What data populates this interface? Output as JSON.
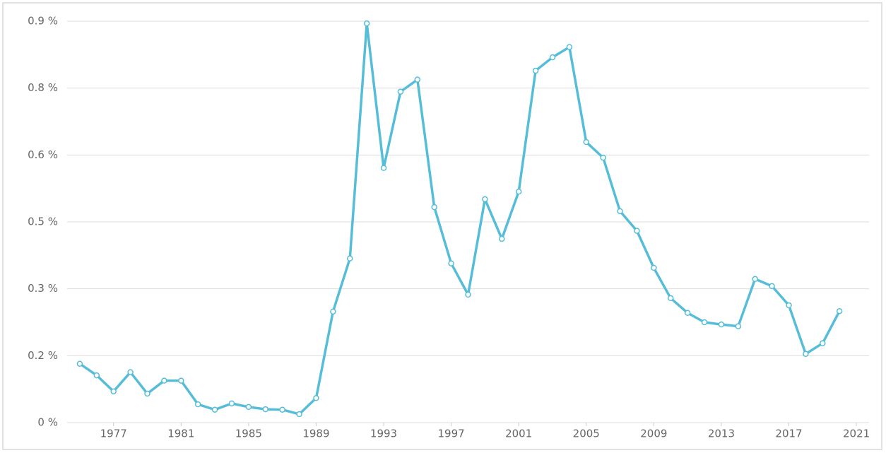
{
  "chart_data": {
    "type": "line",
    "x": [
      1975,
      1976,
      1977,
      1978,
      1979,
      1980,
      1981,
      1982,
      1983,
      1984,
      1985,
      1986,
      1987,
      1988,
      1989,
      1990,
      1991,
      1992,
      1993,
      1994,
      1995,
      1996,
      1997,
      1998,
      1999,
      2000,
      2001,
      2002,
      2003,
      2004,
      2005,
      2006,
      2007,
      2008,
      2009,
      2010,
      2011,
      2012,
      2013,
      2014,
      2015,
      2016,
      2017,
      2018,
      2019,
      2020
    ],
    "series": [
      {
        "color": "#56bdd9",
        "values": [
          0.132,
          0.106,
          0.07,
          0.113,
          0.065,
          0.094,
          0.094,
          0.041,
          0.029,
          0.043,
          0.035,
          0.03,
          0.029,
          0.019,
          0.055,
          0.249,
          0.368,
          0.895,
          0.571,
          0.742,
          0.769,
          0.483,
          0.357,
          0.287,
          0.501,
          0.412,
          0.518,
          0.789,
          0.819,
          0.842,
          0.629,
          0.594,
          0.474,
          0.43,
          0.347,
          0.279,
          0.246,
          0.225,
          0.22,
          0.216,
          0.322,
          0.306,
          0.263,
          0.154,
          0.178,
          0.25
        ]
      }
    ],
    "xlim": [
      1974.25,
      2021.75
    ],
    "xticks": [
      1977,
      1981,
      1985,
      1989,
      1993,
      1997,
      2001,
      2005,
      2009,
      2013,
      2017,
      2021
    ],
    "ylim": [
      0,
      0.9
    ],
    "yticks": [
      {
        "value": 0,
        "label": "0 %"
      },
      {
        "value": 0.15,
        "label": "0.2 %"
      },
      {
        "value": 0.3,
        "label": "0.3 %"
      },
      {
        "value": 0.45,
        "label": "0.5 %"
      },
      {
        "value": 0.6,
        "label": "0.6 %"
      },
      {
        "value": 0.75,
        "label": "0.8 %"
      },
      {
        "value": 0.9,
        "label": "0.9 %"
      }
    ],
    "grid": true
  }
}
